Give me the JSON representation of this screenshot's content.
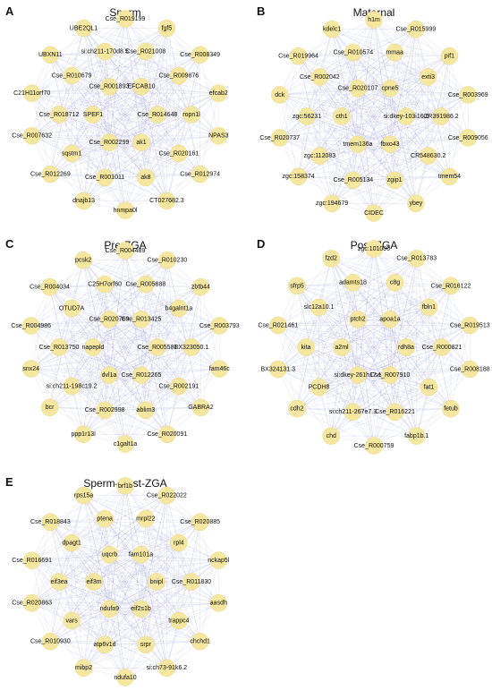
{
  "panels": [
    {
      "letter": "A",
      "title": "Sperm",
      "nodes": [
        "Cse_R019199",
        "fgf5",
        "Cse_R008349",
        "efcab2",
        "NPAS3",
        "Cse_R012974",
        "CT027682.3",
        "hnmpa0l",
        "dnajb13",
        "Cse_R012269",
        "Cse_R007632",
        "C21H11orf70",
        "UBXN11",
        "UBE2QL1",
        "Cse_R021008",
        "Cse_R009876",
        "ropn1l",
        "Cse_R020161",
        "ak8",
        "Cse_R001011",
        "sqstm1",
        "Cse_R018712",
        "Cse_R010679",
        "si:ch211-170d8.5",
        "EFCAB10",
        "Cse_R014648",
        "ak1",
        "Cse_R002299",
        "SPEF1",
        "Cse_R001893"
      ]
    },
    {
      "letter": "B",
      "title": "Maternal",
      "nodes": [
        "h1m",
        "Cse_R015999",
        "pif1",
        "Cse_R003969",
        "Cse_R009056",
        "tmem54",
        "ybey",
        "CIDEC",
        "zgc:194679",
        "zgc:158374",
        "Cse_R020737",
        "dck",
        "Cse_R019964",
        "kdelc1",
        "mmaa",
        "exti3",
        "CR391986.2",
        "CR548630.2",
        "zgip1",
        "Cse_R005134",
        "zgc:112083",
        "zgc:56231",
        "Cse_R002042",
        "Cse_R010574",
        "cpne5",
        "si:dkey-103i16.6",
        "fbxo43",
        "tmem136a",
        "cth1",
        "Cse_R020107"
      ]
    },
    {
      "letter": "C",
      "title": "Pre-ZGA",
      "nodes": [
        "Cse_R004489",
        "Cse_R010230",
        "zbtb44",
        "Cse_R003793",
        "fam46c",
        "GABRA2",
        "Cse_R020091",
        "c1galt1a",
        "ppp1r13l",
        "bcr",
        "snx24",
        "Cse_R004986",
        "Cse_R004034",
        "pcsk2",
        "Cse_R005888",
        "b4galnt1a",
        "BX323050.1",
        "Cse_R002191",
        "ablim3",
        "Cse_R002998",
        "si:ch211-198c19.2",
        "Cse_R013750",
        "OTUD7A",
        "C25H7orf60",
        "Cse_R013425",
        "Cse_R005581",
        "Cse_R012265",
        "dvl1a",
        "napepld",
        "Cse_R020769"
      ]
    },
    {
      "letter": "D",
      "title": "Post-ZGA",
      "nodes": [
        "zgc:101000",
        "Cse_R013783",
        "Cse_R016122",
        "Cse_R019513",
        "Cse_R008188",
        "fetub",
        "fabp1b.1",
        "Cse_R000759",
        "chd",
        "cdh2",
        "BX324131.3",
        "Cse_R021461",
        "sfrp5",
        "fzd2",
        "c8g",
        "fbln1",
        "Cse_R000821",
        "fat1",
        "Cse_R016221",
        "si:ch211-267e7.3",
        "PCDH8",
        "kita",
        "slc12a10.1",
        "adamts18",
        "apoa1a",
        "rdh8a",
        "Cse_R007910",
        "si:dkey-261h17.1",
        "a2ml",
        "ptch2"
      ]
    },
    {
      "letter": "E",
      "title": "Sperm–post-ZGA",
      "nodes": [
        "brf1b",
        "Cse_R022022",
        "Cse_R020885",
        "nckap5l",
        "aasdh",
        "chchd1",
        "si:ch73-91k6.2",
        "ndufa10",
        "mibp2",
        "Cse_R010930",
        "Cse_R020863",
        "Cse_R016691",
        "Cse_R018843",
        "rps15a",
        "mrpl22",
        "rpl4",
        "Cse_R011830",
        "trappc4",
        "srpr",
        "atp6v1d",
        "vars",
        "eif3ea",
        "dpagt1",
        "ptena",
        "fam101a",
        "bnipl",
        "eif2s1b",
        "ndufa9",
        "eif3m",
        "uqcrb"
      ]
    }
  ]
}
